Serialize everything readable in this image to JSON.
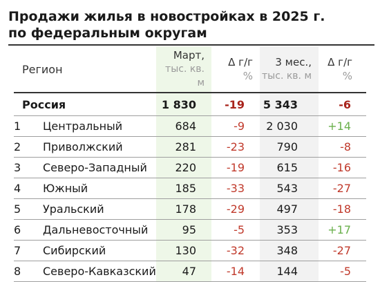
{
  "title": {
    "line1": "Продажи жилья в новостройках в 2025 г.",
    "line2": "по федеральным округам"
  },
  "header": {
    "region": "Регион",
    "march": "Март,",
    "march_unit": "тыс. кв. м",
    "delta_march": "Δ г/г",
    "delta_march_unit": "%",
    "three_months": "3 мес.,",
    "three_months_unit": "тыс. кв. м",
    "delta_3m": "Δ г/г",
    "delta_3m_unit": "%"
  },
  "total": {
    "name": "Россия",
    "march": "1 830",
    "delta_march": "-19",
    "three_months": "5 343",
    "delta_3m": "-6"
  },
  "rows": [
    {
      "rank": "1",
      "name": "Центральный",
      "march": "684",
      "delta_march": "-9",
      "three_months": "2 030",
      "delta_3m": "+14"
    },
    {
      "rank": "2",
      "name": "Приволжский",
      "march": "281",
      "delta_march": "-23",
      "three_months": "790",
      "delta_3m": "-8"
    },
    {
      "rank": "3",
      "name": "Северо-Западный",
      "march": "220",
      "delta_march": "-19",
      "three_months": "615",
      "delta_3m": "-16"
    },
    {
      "rank": "4",
      "name": "Южный",
      "march": "185",
      "delta_march": "-33",
      "three_months": "543",
      "delta_3m": "-27"
    },
    {
      "rank": "5",
      "name": "Уральский",
      "march": "178",
      "delta_march": "-29",
      "three_months": "497",
      "delta_3m": "-18"
    },
    {
      "rank": "6",
      "name": "Дальневосточный",
      "march": "95",
      "delta_march": "-5",
      "three_months": "353",
      "delta_3m": "+17"
    },
    {
      "rank": "7",
      "name": "Сибирский",
      "march": "130",
      "delta_march": "-32",
      "three_months": "348",
      "delta_3m": "-27"
    },
    {
      "rank": "8",
      "name": "Северо-Кавказский",
      "march": "47",
      "delta_march": "-14",
      "three_months": "144",
      "delta_3m": "-5"
    }
  ],
  "colors": {
    "negative": "#c0392b",
    "positive": "#6ab04c",
    "march_column_bg": "#eef7e8",
    "three_month_column_bg": "#f2f2f2"
  }
}
